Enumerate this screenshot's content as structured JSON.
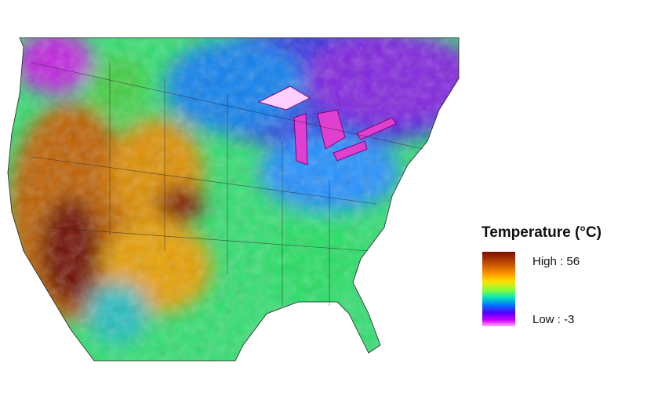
{
  "legend": {
    "title": "Temperature (°C)",
    "high_label": "High : 56",
    "low_label": "Low : -3"
  }
}
